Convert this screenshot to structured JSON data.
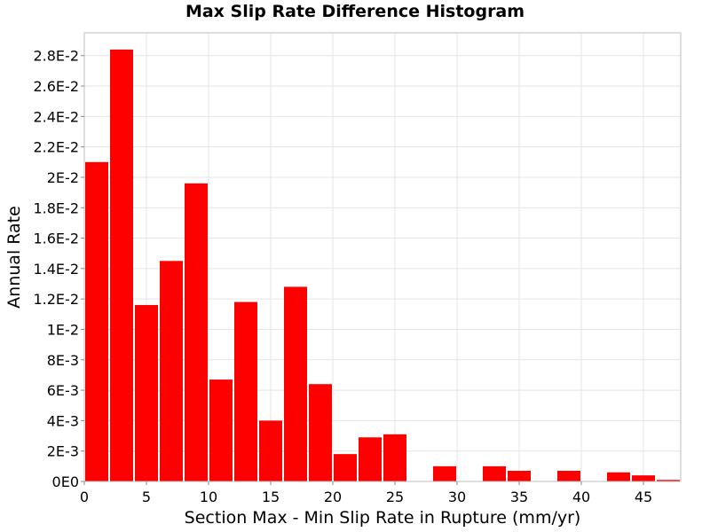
{
  "chart_data": {
    "type": "bar",
    "title": "Max Slip Rate Difference Histogram",
    "xlabel": "Section Max - Min Slip Rate in Rupture (mm/yr)",
    "ylabel": "Annual Rate",
    "bin_width": 2,
    "xlim": [
      0,
      48
    ],
    "ylim": [
      0,
      0.0295
    ],
    "x_ticks": [
      0,
      5,
      10,
      15,
      20,
      25,
      30,
      35,
      40,
      45
    ],
    "x_tick_labels": [
      "0",
      "5",
      "10",
      "15",
      "20",
      "25",
      "30",
      "35",
      "40",
      "45"
    ],
    "y_ticks": [
      0,
      0.002,
      0.004,
      0.006,
      0.008,
      0.01,
      0.012,
      0.014,
      0.016,
      0.018,
      0.02,
      0.022,
      0.024,
      0.026,
      0.028
    ],
    "y_tick_labels": [
      "0E0",
      "2E-3",
      "4E-3",
      "6E-3",
      "8E-3",
      "1E-2",
      "1.2E-2",
      "1.4E-2",
      "1.6E-2",
      "1.8E-2",
      "2E-2",
      "2.2E-2",
      "2.4E-2",
      "2.6E-2",
      "2.8E-2"
    ],
    "grid": true,
    "bar_color": "#ff0000",
    "bins": [
      {
        "x": 1,
        "value": 0.021
      },
      {
        "x": 3,
        "value": 0.0284
      },
      {
        "x": 5,
        "value": 0.0116
      },
      {
        "x": 7,
        "value": 0.0145
      },
      {
        "x": 9,
        "value": 0.0196
      },
      {
        "x": 11,
        "value": 0.0067
      },
      {
        "x": 13,
        "value": 0.0118
      },
      {
        "x": 15,
        "value": 0.004
      },
      {
        "x": 17,
        "value": 0.0128
      },
      {
        "x": 19,
        "value": 0.0064
      },
      {
        "x": 21,
        "value": 0.0018
      },
      {
        "x": 23,
        "value": 0.0029
      },
      {
        "x": 25,
        "value": 0.0031
      },
      {
        "x": 27,
        "value": 0.0
      },
      {
        "x": 29,
        "value": 0.001
      },
      {
        "x": 31,
        "value": 0.0
      },
      {
        "x": 33,
        "value": 0.001
      },
      {
        "x": 35,
        "value": 0.0007
      },
      {
        "x": 37,
        "value": 0.0
      },
      {
        "x": 39,
        "value": 0.0007
      },
      {
        "x": 41,
        "value": 0.0
      },
      {
        "x": 43,
        "value": 0.0006
      },
      {
        "x": 45,
        "value": 0.0004
      },
      {
        "x": 47,
        "value": 0.0001
      }
    ]
  }
}
